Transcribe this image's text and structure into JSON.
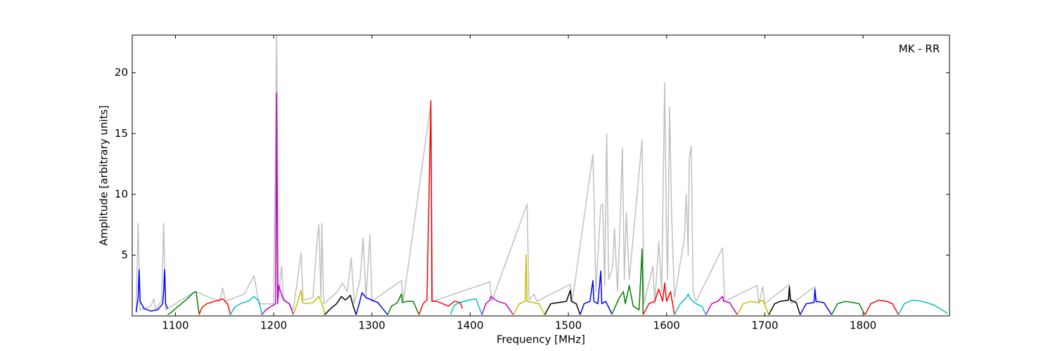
{
  "chart_data": {
    "type": "line",
    "annotation": "MK - RR",
    "xlabel": "Frequency [MHz]",
    "ylabel": "Amplitude [arbitrary units]",
    "xlim": [
      1056,
      1888
    ],
    "ylim": [
      0,
      23.1
    ],
    "xticks": [
      1100,
      1200,
      1300,
      1400,
      1500,
      1600,
      1700,
      1800
    ],
    "yticks": [
      5,
      10,
      15,
      20
    ],
    "series": [
      {
        "color": "#c0c0c0",
        "x": [
          1060,
          1062,
          1064,
          1075,
          1078,
          1080,
          1086,
          1088,
          1090,
          1120,
          1145,
          1148,
          1151,
          1170,
          1180,
          1185,
          1200,
          1203,
          1205,
          1208,
          1210,
          1220,
          1228,
          1230,
          1240,
          1244,
          1246,
          1248,
          1249,
          1251,
          1265,
          1270,
          1275,
          1279,
          1282,
          1288,
          1291,
          1294,
          1298,
          1300,
          1330,
          1332,
          1360,
          1362,
          1420,
          1422,
          1458,
          1460,
          1465,
          1468,
          1502,
          1504,
          1525,
          1526,
          1528,
          1533,
          1535,
          1537,
          1539,
          1541,
          1545,
          1547,
          1550,
          1552,
          1555,
          1557,
          1559,
          1562,
          1575,
          1577,
          1586,
          1588,
          1592,
          1595,
          1598,
          1600,
          1601,
          1603,
          1605,
          1608,
          1618,
          1620,
          1622,
          1623,
          1625,
          1627,
          1630,
          1657,
          1659,
          1692,
          1694,
          1698,
          1700,
          1725,
          1727,
          1751,
          1753
        ],
        "values": [
          0.3,
          7.6,
          0.5,
          0.8,
          1.4,
          0.5,
          1.3,
          7.6,
          0.5,
          2.0,
          1.2,
          2.3,
          1.2,
          1.8,
          3.3,
          1.0,
          1.0,
          23.1,
          1.5,
          4.1,
          1.5,
          0.5,
          5.2,
          1.3,
          1.5,
          6.0,
          7.5,
          1.5,
          7.6,
          1.0,
          2.0,
          2.7,
          2.0,
          4.8,
          1.0,
          3.0,
          6.4,
          1.5,
          6.7,
          1.2,
          2.9,
          1.2,
          17.5,
          1.2,
          2.8,
          1.2,
          9.2,
          1.3,
          1.8,
          1.2,
          2.6,
          1.2,
          13.3,
          10.2,
          2.0,
          9.1,
          9.2,
          2.5,
          15.0,
          3.0,
          4.0,
          7.2,
          2.0,
          6.0,
          13.8,
          3.0,
          8.5,
          3.0,
          14.5,
          1.0,
          4.1,
          1.0,
          6.1,
          2.0,
          19.2,
          6.0,
          3.0,
          17.2,
          8.5,
          1.5,
          6.3,
          10.0,
          5.0,
          12.9,
          14.0,
          2.0,
          1.2,
          5.6,
          1.2,
          2.5,
          1.0,
          2.4,
          1.0,
          2.6,
          1.0,
          2.4,
          1.0
        ]
      },
      {
        "color": "#0000ff",
        "x": [
          1060,
          1062,
          1063,
          1064,
          1068,
          1075,
          1082,
          1087,
          1088,
          1089,
          1090,
          1092
        ],
        "values": [
          0.3,
          1.5,
          3.8,
          1.2,
          0.6,
          0.4,
          0.5,
          1.0,
          2.0,
          3.8,
          1.0,
          0.6
        ]
      },
      {
        "color": "#008000",
        "x": [
          1092,
          1096,
          1100,
          1106,
          1112,
          1118,
          1121,
          1124
        ],
        "values": [
          0.1,
          0.3,
          0.6,
          1.0,
          1.4,
          1.9,
          2.0,
          0.2
        ]
      },
      {
        "color": "#ff0000",
        "x": [
          1124,
          1127,
          1132,
          1140,
          1148,
          1153,
          1156
        ],
        "values": [
          0.1,
          0.7,
          1.0,
          1.2,
          1.4,
          1.0,
          0.1
        ]
      },
      {
        "color": "#00bfbf",
        "x": [
          1156,
          1160,
          1166,
          1174,
          1180,
          1185,
          1188
        ],
        "values": [
          0.1,
          0.7,
          1.0,
          1.2,
          1.6,
          1.2,
          0.1
        ]
      },
      {
        "color": "#bf00bf",
        "x": [
          1188,
          1192,
          1198,
          1202,
          1203,
          1204,
          1205,
          1210,
          1216,
          1220
        ],
        "values": [
          0.1,
          0.5,
          0.8,
          1.0,
          18.3,
          1.0,
          2.5,
          1.3,
          1.0,
          0.1
        ]
      },
      {
        "color": "#bfbf00",
        "x": [
          1220,
          1224,
          1228,
          1229,
          1234,
          1240,
          1246,
          1250,
          1252
        ],
        "values": [
          0.1,
          1.0,
          2.1,
          1.1,
          1.0,
          1.1,
          1.6,
          0.8,
          0.1
        ]
      },
      {
        "color": "#000000",
        "x": [
          1252,
          1258,
          1264,
          1269,
          1273,
          1278,
          1281,
          1284
        ],
        "values": [
          0.1,
          0.6,
          1.0,
          1.6,
          1.3,
          1.7,
          0.8,
          0.1
        ]
      },
      {
        "color": "#0000ff",
        "x": [
          1284,
          1287,
          1290,
          1294,
          1300,
          1306,
          1312,
          1316
        ],
        "values": [
          0.1,
          1.0,
          1.9,
          1.5,
          1.3,
          1.1,
          0.5,
          0.1
        ]
      },
      {
        "color": "#008000",
        "x": [
          1316,
          1320,
          1326,
          1330,
          1331,
          1336,
          1342,
          1348
        ],
        "values": [
          0.1,
          0.8,
          1.1,
          1.8,
          1.1,
          1.2,
          1.2,
          0.1
        ]
      },
      {
        "color": "#ff0000",
        "x": [
          1348,
          1352,
          1356,
          1360,
          1361,
          1366,
          1372,
          1378,
          1384,
          1390,
          1392
        ],
        "values": [
          0.1,
          1.0,
          1.3,
          17.7,
          1.2,
          1.2,
          1.0,
          0.8,
          1.2,
          1.1,
          0.6
        ]
      },
      {
        "color": "#00bfbf",
        "x": [
          1380,
          1384,
          1390,
          1398,
          1406,
          1412
        ],
        "values": [
          0.1,
          0.9,
          1.1,
          1.3,
          1.4,
          0.1
        ]
      },
      {
        "color": "#bf00bf",
        "x": [
          1412,
          1416,
          1420,
          1421,
          1428,
          1436,
          1444
        ],
        "values": [
          0.1,
          1.0,
          1.3,
          1.6,
          1.2,
          1.0,
          0.1
        ]
      },
      {
        "color": "#bfbf00",
        "x": [
          1444,
          1450,
          1456,
          1457,
          1458,
          1464,
          1470,
          1476
        ],
        "values": [
          0.1,
          1.0,
          1.2,
          5.0,
          1.2,
          1.1,
          1.0,
          0.1
        ]
      },
      {
        "color": "#000000",
        "x": [
          1476,
          1482,
          1490,
          1498,
          1502,
          1503,
          1508,
          1512
        ],
        "values": [
          0.1,
          1.0,
          1.1,
          1.2,
          2.1,
          1.2,
          1.0,
          0.1
        ]
      },
      {
        "color": "#0000ff",
        "x": [
          1512,
          1516,
          1522,
          1525,
          1526,
          1530,
          1533,
          1534,
          1538,
          1544
        ],
        "values": [
          0.1,
          1.0,
          1.2,
          2.9,
          1.2,
          1.0,
          3.7,
          1.0,
          1.2,
          0.2
        ]
      },
      {
        "color": "#008000",
        "x": [
          1544,
          1548,
          1552,
          1556,
          1558,
          1562,
          1566,
          1572,
          1575,
          1576
        ],
        "values": [
          0.1,
          0.8,
          1.5,
          2.0,
          1.0,
          2.5,
          0.8,
          0.5,
          5.5,
          0.1
        ]
      },
      {
        "color": "#ff0000",
        "x": [
          1576,
          1582,
          1588,
          1592,
          1596,
          1598,
          1600,
          1604,
          1608
        ],
        "values": [
          0.1,
          1.0,
          1.2,
          2.2,
          1.2,
          2.7,
          1.2,
          2.0,
          0.1
        ]
      },
      {
        "color": "#00bfbf",
        "x": [
          1608,
          1614,
          1620,
          1622,
          1624,
          1630,
          1636,
          1640
        ],
        "values": [
          0.1,
          1.0,
          1.5,
          1.8,
          1.4,
          1.0,
          0.8,
          0.1
        ]
      },
      {
        "color": "#bf00bf",
        "x": [
          1640,
          1646,
          1652,
          1657,
          1658,
          1664,
          1672
        ],
        "values": [
          0.1,
          1.0,
          1.2,
          1.6,
          1.2,
          1.1,
          0.1
        ]
      },
      {
        "color": "#bfbf00",
        "x": [
          1672,
          1678,
          1686,
          1692,
          1698,
          1704
        ],
        "values": [
          0.1,
          1.0,
          1.2,
          1.1,
          1.3,
          0.1
        ]
      },
      {
        "color": "#000000",
        "x": [
          1704,
          1710,
          1716,
          1724,
          1725,
          1726,
          1732,
          1736
        ],
        "values": [
          0.1,
          1.0,
          1.2,
          1.3,
          2.4,
          1.3,
          1.1,
          0.1
        ]
      },
      {
        "color": "#0000ff",
        "x": [
          1736,
          1742,
          1750,
          1751,
          1752,
          1760,
          1768
        ],
        "values": [
          0.1,
          1.0,
          1.1,
          2.2,
          1.2,
          1.1,
          0.1
        ]
      },
      {
        "color": "#008000",
        "x": [
          1768,
          1774,
          1782,
          1790,
          1796,
          1802
        ],
        "values": [
          0.1,
          1.0,
          1.2,
          1.1,
          1.0,
          0.1
        ]
      },
      {
        "color": "#ff0000",
        "x": [
          1802,
          1808,
          1816,
          1824,
          1830,
          1836
        ],
        "values": [
          0.1,
          1.0,
          1.3,
          1.2,
          1.0,
          0.1
        ]
      },
      {
        "color": "#00bfbf",
        "x": [
          1836,
          1842,
          1850,
          1860,
          1872,
          1886
        ],
        "values": [
          0.1,
          1.0,
          1.3,
          1.2,
          0.9,
          0.2
        ]
      }
    ]
  }
}
